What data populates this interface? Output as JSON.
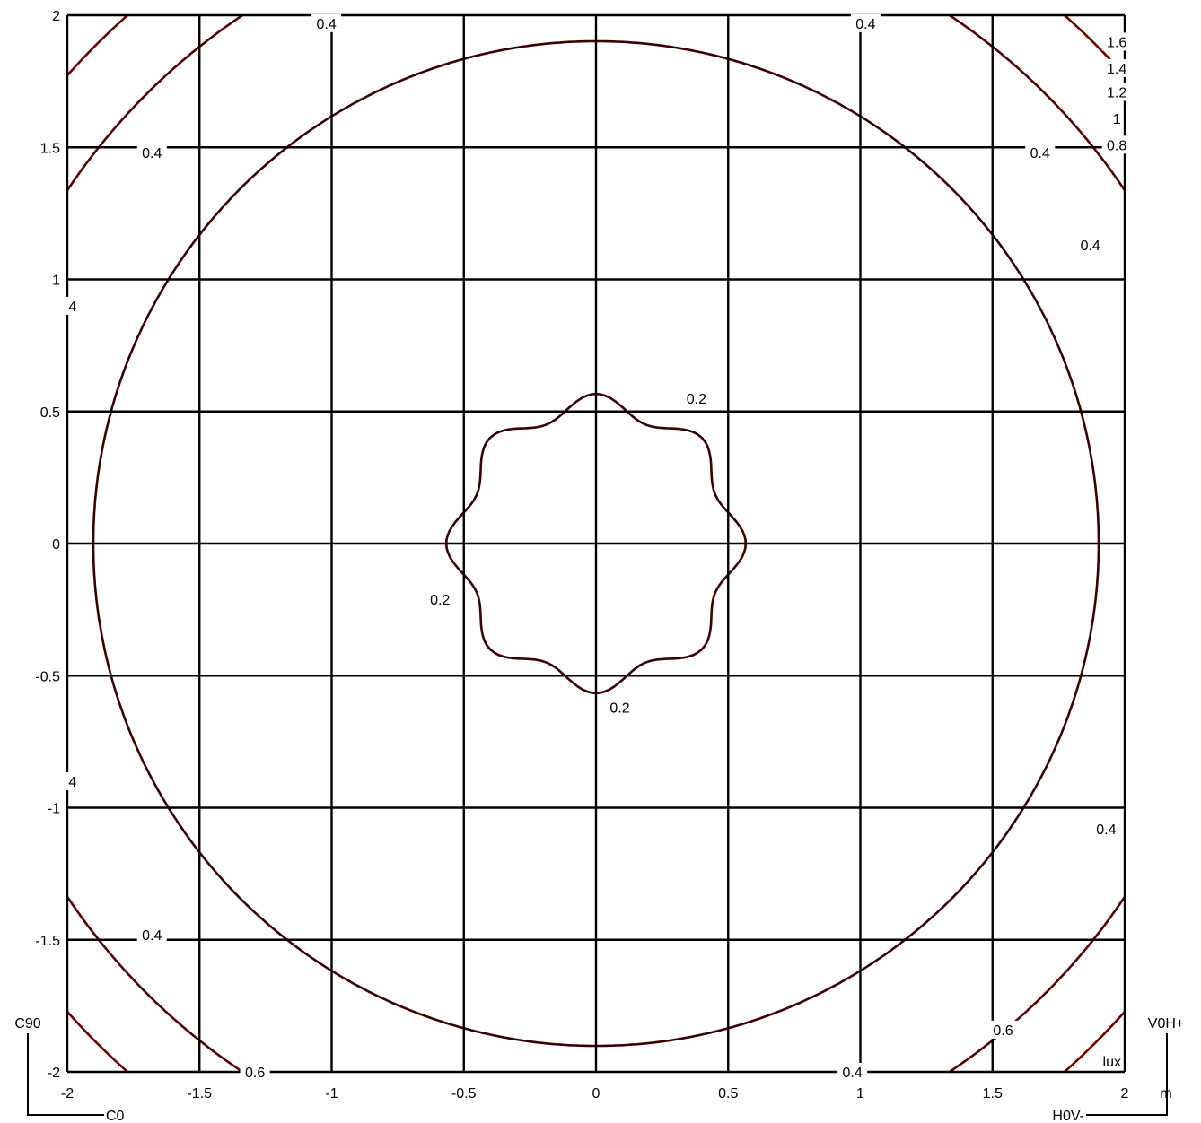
{
  "chart_data": {
    "type": "contour",
    "title": "",
    "unit_label": "lux",
    "axis_unit": "m",
    "xlim": [
      -2,
      2
    ],
    "ylim": [
      -2,
      2
    ],
    "xticks": [
      "-2",
      "-1.5",
      "-1",
      "-0.5",
      "0",
      "0.5",
      "1",
      "1.5",
      "2"
    ],
    "yticks": [
      "2",
      "1.5",
      "1",
      "0.5",
      "0",
      "-0.5",
      "-1",
      "-1.5",
      "-2"
    ],
    "grid": true,
    "levels": [
      0.2,
      0.4,
      0.6,
      0.8,
      1.0,
      1.2,
      1.4,
      1.6
    ],
    "level_labels": [
      "0.2",
      "0.4",
      "0.6",
      "0.8",
      "1",
      "1.2",
      "1.4",
      "1.6"
    ],
    "colors": {
      "low": "#000000",
      "mid": "#3a0000",
      "high": "#cc0000",
      "grid": "#000000"
    },
    "contour_labels": [
      {
        "text": "0.2",
        "x": 0.38,
        "y": 0.55
      },
      {
        "text": "0.2",
        "x": -0.59,
        "y": -0.21
      },
      {
        "text": "0.2",
        "x": 0.09,
        "y": -0.62
      },
      {
        "text": "0.4",
        "x": -1.02,
        "y": 1.97
      },
      {
        "text": "0.4",
        "x": -1.68,
        "y": 1.48
      },
      {
        "text": "0.4",
        "x": 1.02,
        "y": 1.97
      },
      {
        "text": "0.4",
        "x": 1.68,
        "y": 1.48
      },
      {
        "text": "0.4",
        "x": 1.87,
        "y": 1.13
      },
      {
        "text": "0.4",
        "x": -1.68,
        "y": -1.48
      },
      {
        "text": "0.4",
        "x": 1.93,
        "y": -1.08
      },
      {
        "text": "0.4",
        "x": 0.97,
        "y": -2.0
      },
      {
        "text": "0.6",
        "x": 1.54,
        "y": -1.84
      },
      {
        "text": "0.6",
        "x": -1.29,
        "y": -2.0
      },
      {
        "text": "0.8",
        "x": 1.97,
        "y": 1.51
      },
      {
        "text": "1",
        "x": 1.97,
        "y": 1.61
      },
      {
        "text": "1.2",
        "x": 1.97,
        "y": 1.71
      },
      {
        "text": "1.4",
        "x": 1.97,
        "y": 1.8
      },
      {
        "text": "1.6",
        "x": 1.97,
        "y": 1.9
      },
      {
        "text": "4",
        "x": -1.98,
        "y": 0.9
      },
      {
        "text": "4",
        "x": -1.98,
        "y": -0.9
      }
    ],
    "orientation": {
      "left": "C90",
      "bottom_left": "C0",
      "right": "V0H+",
      "bottom_right": "H0V-"
    }
  }
}
